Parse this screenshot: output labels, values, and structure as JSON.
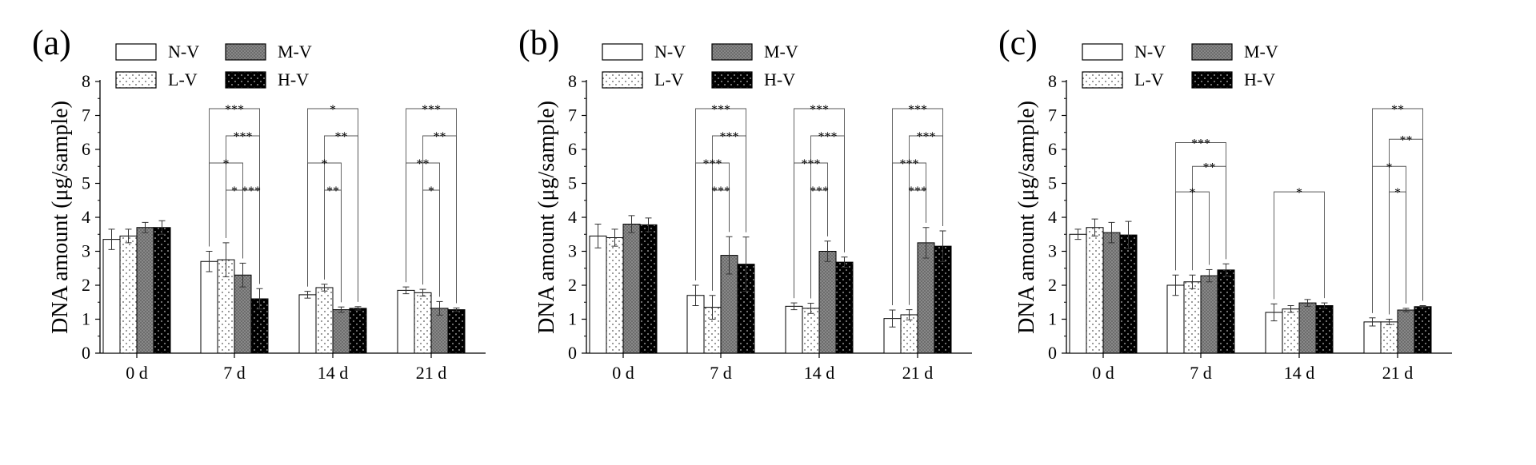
{
  "legend": {
    "N-V": "N-V",
    "M-V": "M-V",
    "L-V": "L-V",
    "H-V": "H-V"
  },
  "chart_data": [
    {
      "panel_label": "(a)",
      "type": "bar",
      "categories": [
        "0 d",
        "7 d",
        "14 d",
        "21 d"
      ],
      "ylabel": "DNA amount (μg/sample)",
      "ylim": [
        0,
        8
      ],
      "yticks": [
        "0",
        "1",
        "2",
        "3",
        "4",
        "5",
        "6",
        "7",
        "8"
      ],
      "series": [
        {
          "name": "N-V",
          "values": [
            3.35,
            2.7,
            1.72,
            1.85
          ],
          "errors": [
            0.3,
            0.3,
            0.1,
            0.1
          ]
        },
        {
          "name": "L-V",
          "values": [
            3.45,
            2.75,
            1.93,
            1.78
          ],
          "errors": [
            0.2,
            0.5,
            0.1,
            0.1
          ]
        },
        {
          "name": "M-V",
          "values": [
            3.7,
            2.3,
            1.28,
            1.32
          ],
          "errors": [
            0.15,
            0.35,
            0.08,
            0.2
          ]
        },
        {
          "name": "H-V",
          "values": [
            3.7,
            1.6,
            1.32,
            1.28
          ],
          "errors": [
            0.2,
            0.3,
            0.05,
            0.05
          ]
        }
      ],
      "significance": [
        {
          "category": "7 d",
          "from": "N-V",
          "to": "H-V",
          "label": "***",
          "y": 7.2
        },
        {
          "category": "7 d",
          "from": "L-V",
          "to": "H-V",
          "label": "***",
          "y": 6.4
        },
        {
          "category": "7 d",
          "from": "N-V",
          "to": "M-V",
          "label": "*",
          "y": 5.6
        },
        {
          "category": "7 d",
          "from": "L-V",
          "to": "M-V",
          "label": "*",
          "y": 4.8
        },
        {
          "category": "7 d",
          "from": "M-V",
          "to": "H-V",
          "label": "***",
          "y": 4.8
        },
        {
          "category": "14 d",
          "from": "N-V",
          "to": "H-V",
          "label": "*",
          "y": 7.2
        },
        {
          "category": "14 d",
          "from": "L-V",
          "to": "H-V",
          "label": "**",
          "y": 6.4
        },
        {
          "category": "14 d",
          "from": "N-V",
          "to": "M-V",
          "label": "*",
          "y": 5.6
        },
        {
          "category": "14 d",
          "from": "L-V",
          "to": "M-V",
          "label": "**",
          "y": 4.8
        },
        {
          "category": "21 d",
          "from": "N-V",
          "to": "H-V",
          "label": "***",
          "y": 7.2
        },
        {
          "category": "21 d",
          "from": "L-V",
          "to": "H-V",
          "label": "**",
          "y": 6.4
        },
        {
          "category": "21 d",
          "from": "N-V",
          "to": "M-V",
          "label": "**",
          "y": 5.6
        },
        {
          "category": "21 d",
          "from": "L-V",
          "to": "M-V",
          "label": "*",
          "y": 4.8
        }
      ]
    },
    {
      "panel_label": "(b)",
      "type": "bar",
      "categories": [
        "0 d",
        "7 d",
        "14 d",
        "21 d"
      ],
      "ylabel": "DNA amount (μg/sample)",
      "ylim": [
        0,
        8
      ],
      "yticks": [
        "0",
        "1",
        "2",
        "3",
        "4",
        "5",
        "6",
        "7",
        "8"
      ],
      "series": [
        {
          "name": "N-V",
          "values": [
            3.45,
            1.7,
            1.38,
            1.02
          ],
          "errors": [
            0.35,
            0.3,
            0.1,
            0.25
          ]
        },
        {
          "name": "L-V",
          "values": [
            3.4,
            1.35,
            1.32,
            1.13
          ],
          "errors": [
            0.25,
            0.35,
            0.15,
            0.15
          ]
        },
        {
          "name": "M-V",
          "values": [
            3.8,
            2.88,
            3.0,
            3.25
          ],
          "errors": [
            0.25,
            0.55,
            0.3,
            0.45
          ]
        },
        {
          "name": "H-V",
          "values": [
            3.78,
            2.62,
            2.68,
            3.15
          ],
          "errors": [
            0.2,
            0.8,
            0.15,
            0.45
          ]
        }
      ],
      "significance": [
        {
          "category": "7 d",
          "from": "N-V",
          "to": "H-V",
          "label": "***",
          "y": 7.2
        },
        {
          "category": "7 d",
          "from": "L-V",
          "to": "H-V",
          "label": "***",
          "y": 6.4
        },
        {
          "category": "7 d",
          "from": "N-V",
          "to": "M-V",
          "label": "***",
          "y": 5.6
        },
        {
          "category": "7 d",
          "from": "L-V",
          "to": "M-V",
          "label": "***",
          "y": 4.8
        },
        {
          "category": "14 d",
          "from": "N-V",
          "to": "H-V",
          "label": "***",
          "y": 7.2
        },
        {
          "category": "14 d",
          "from": "L-V",
          "to": "H-V",
          "label": "***",
          "y": 6.4
        },
        {
          "category": "14 d",
          "from": "N-V",
          "to": "M-V",
          "label": "***",
          "y": 5.6
        },
        {
          "category": "14 d",
          "from": "L-V",
          "to": "M-V",
          "label": "***",
          "y": 4.8
        },
        {
          "category": "21 d",
          "from": "N-V",
          "to": "H-V",
          "label": "***",
          "y": 7.2
        },
        {
          "category": "21 d",
          "from": "L-V",
          "to": "H-V",
          "label": "***",
          "y": 6.4
        },
        {
          "category": "21 d",
          "from": "N-V",
          "to": "M-V",
          "label": "***",
          "y": 5.6
        },
        {
          "category": "21 d",
          "from": "L-V",
          "to": "M-V",
          "label": "***",
          "y": 4.8
        }
      ]
    },
    {
      "panel_label": "(c)",
      "type": "bar",
      "categories": [
        "0 d",
        "7 d",
        "14 d",
        "21 d"
      ],
      "ylabel": "DNA amount (μg/sample)",
      "ylim": [
        0,
        8
      ],
      "yticks": [
        "0",
        "1",
        "2",
        "3",
        "4",
        "5",
        "6",
        "7",
        "8"
      ],
      "series": [
        {
          "name": "N-V",
          "values": [
            3.5,
            2.0,
            1.2,
            0.92
          ],
          "errors": [
            0.15,
            0.3,
            0.25,
            0.12
          ]
        },
        {
          "name": "L-V",
          "values": [
            3.7,
            2.1,
            1.3,
            0.92
          ],
          "errors": [
            0.25,
            0.2,
            0.1,
            0.08
          ]
        },
        {
          "name": "M-V",
          "values": [
            3.55,
            2.28,
            1.48,
            1.27
          ],
          "errors": [
            0.3,
            0.18,
            0.1,
            0.05
          ]
        },
        {
          "name": "H-V",
          "values": [
            3.48,
            2.45,
            1.4,
            1.37
          ],
          "errors": [
            0.4,
            0.18,
            0.08,
            0.03
          ]
        }
      ],
      "significance": [
        {
          "category": "7 d",
          "from": "N-V",
          "to": "H-V",
          "label": "***",
          "y": 6.2
        },
        {
          "category": "7 d",
          "from": "L-V",
          "to": "H-V",
          "label": "**",
          "y": 5.5
        },
        {
          "category": "7 d",
          "from": "N-V",
          "to": "M-V",
          "label": "*",
          "y": 4.75
        },
        {
          "category": "14 d",
          "from": "N-V",
          "to": "H-V",
          "label": "*",
          "y": 4.75
        },
        {
          "category": "21 d",
          "from": "N-V",
          "to": "H-V",
          "label": "**",
          "y": 7.2
        },
        {
          "category": "21 d",
          "from": "L-V",
          "to": "H-V",
          "label": "**",
          "y": 6.3
        },
        {
          "category": "21 d",
          "from": "N-V",
          "to": "M-V",
          "label": "*",
          "y": 5.5
        },
        {
          "category": "21 d",
          "from": "L-V",
          "to": "M-V",
          "label": "*",
          "y": 4.75
        }
      ]
    }
  ]
}
